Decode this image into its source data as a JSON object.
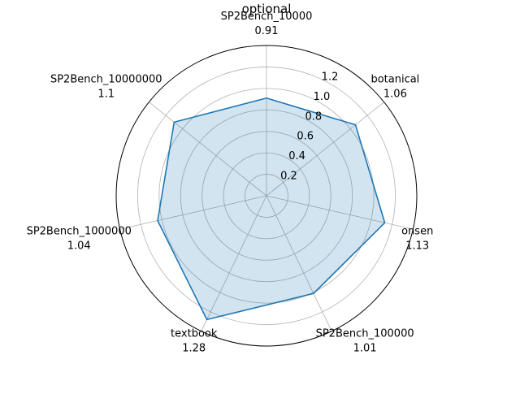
{
  "chart_data": {
    "type": "radar",
    "title": "optional",
    "categories": [
      "SP2Bench_10000",
      "botanical",
      "onsen",
      "SP2Bench_100000",
      "textbook",
      "SP2Bench_1000000",
      "SP2Bench_10000000"
    ],
    "value_labels": [
      "0.91",
      "1.06",
      "1.13",
      "1.01",
      "1.28",
      "1.04",
      "1.1"
    ],
    "values": [
      0.91,
      1.06,
      1.13,
      1.01,
      1.28,
      1.04,
      1.1
    ],
    "radial_ticks": [
      "0.2",
      "0.4",
      "0.6",
      "0.8",
      "1.0",
      "1.2"
    ],
    "radial_tick_values": [
      0.2,
      0.4,
      0.6,
      0.8,
      1.0,
      1.2
    ],
    "rlim": [
      0,
      1.4
    ],
    "grid": true,
    "colors": {
      "line": "#1f77b4",
      "fill": "#1f77b4",
      "grid": "#b0b0b0",
      "frame": "#000000"
    }
  }
}
